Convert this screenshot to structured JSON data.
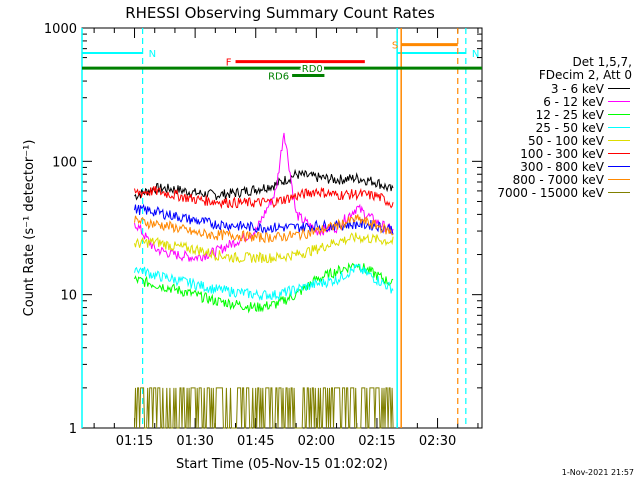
{
  "chart_data": {
    "type": "line",
    "title": "RHESSI Observing Summary Count Rates",
    "xlabel": "Start Time (05-Nov-15 01:02:02)",
    "ylabel": "Count Rate (s⁻¹ detector⁻¹)",
    "y_scale": "log",
    "ylim": [
      1,
      1000
    ],
    "xlim": [
      "01:02",
      "02:41"
    ],
    "x_ticks": [
      "01:15",
      "01:30",
      "01:45",
      "02:00",
      "02:15",
      "02:30"
    ],
    "y_ticks": [
      "1",
      "10",
      "100",
      "1000"
    ],
    "legend": {
      "placement": "right",
      "header": [
        "Det 1,5,7,",
        "FDecim 2, Att 0"
      ]
    },
    "series": [
      {
        "name": "3 - 6 keV",
        "color": "#000000",
        "x": [
          "01:15",
          "01:20",
          "01:25",
          "01:30",
          "01:35",
          "01:40",
          "01:45",
          "01:50",
          "01:52",
          "01:55",
          "02:00",
          "02:05",
          "02:10",
          "02:15",
          "02:19"
        ],
        "y": [
          55,
          63,
          62,
          58,
          56,
          58,
          62,
          67,
          72,
          80,
          76,
          73,
          75,
          70,
          60
        ]
      },
      {
        "name": "6 - 12 keV",
        "color": "#ff00ff",
        "x": [
          "01:15",
          "01:20",
          "01:25",
          "01:30",
          "01:35",
          "01:40",
          "01:45",
          "01:50",
          "01:52",
          "01:55",
          "02:00",
          "02:05",
          "02:10",
          "02:15",
          "02:19"
        ],
        "y": [
          35,
          22,
          20,
          19,
          21,
          25,
          30,
          60,
          170,
          40,
          30,
          32,
          45,
          35,
          30
        ]
      },
      {
        "name": "12 - 25 keV",
        "color": "#00ff00",
        "x": [
          "01:15",
          "01:20",
          "01:25",
          "01:30",
          "01:35",
          "01:40",
          "01:45",
          "01:50",
          "01:55",
          "02:00",
          "02:05",
          "02:10",
          "02:15",
          "02:19"
        ],
        "y": [
          13,
          12,
          11,
          10,
          9,
          8.5,
          8,
          8.5,
          10,
          13,
          15,
          17,
          14,
          12
        ]
      },
      {
        "name": "25 - 50 keV",
        "color": "#00ffff",
        "x": [
          "01:15",
          "01:20",
          "01:25",
          "01:30",
          "01:35",
          "01:40",
          "01:45",
          "01:50",
          "01:55",
          "02:00",
          "02:05",
          "02:10",
          "02:15",
          "02:19"
        ],
        "y": [
          16,
          14,
          13,
          12,
          11,
          10.5,
          10,
          10,
          11,
          12,
          13,
          16,
          13,
          11
        ]
      },
      {
        "name": "50 - 100 keV",
        "color": "#dddd00",
        "x": [
          "01:15",
          "01:20",
          "01:25",
          "01:30",
          "01:35",
          "01:40",
          "01:45",
          "01:50",
          "01:55",
          "02:00",
          "02:05",
          "02:10",
          "02:15",
          "02:19"
        ],
        "y": [
          24,
          25,
          23,
          22,
          20,
          19,
          19,
          19,
          20,
          22,
          25,
          27,
          26,
          25
        ]
      },
      {
        "name": "100 - 300 keV",
        "color": "#ff0000",
        "x": [
          "01:15",
          "01:20",
          "01:25",
          "01:30",
          "01:35",
          "01:40",
          "01:45",
          "01:50",
          "01:55",
          "02:00",
          "02:05",
          "02:10",
          "02:15",
          "02:19"
        ],
        "y": [
          58,
          60,
          56,
          52,
          50,
          49,
          49,
          50,
          55,
          60,
          56,
          57,
          55,
          48
        ]
      },
      {
        "name": "300 - 800 keV",
        "color": "#0000ff",
        "x": [
          "01:15",
          "01:20",
          "01:25",
          "01:30",
          "01:35",
          "01:40",
          "01:45",
          "01:50",
          "01:55",
          "02:00",
          "02:05",
          "02:10",
          "02:15",
          "02:19"
        ],
        "y": [
          44,
          42,
          39,
          36,
          34,
          33,
          32,
          32,
          32,
          33,
          33,
          34,
          33,
          31
        ]
      },
      {
        "name": "800 - 7000 keV",
        "color": "#ff8800",
        "x": [
          "01:15",
          "01:20",
          "01:25",
          "01:30",
          "01:35",
          "01:40",
          "01:45",
          "01:50",
          "01:55",
          "02:00",
          "02:05",
          "02:10",
          "02:15",
          "02:19"
        ],
        "y": [
          36,
          34,
          32,
          29,
          28,
          28,
          27,
          27,
          28,
          30,
          33,
          37,
          33,
          29
        ]
      },
      {
        "name": "7000 - 15000 keV",
        "color": "#808000",
        "x": [
          "01:15",
          "01:20",
          "01:25",
          "01:30",
          "01:35",
          "01:40",
          "01:45",
          "01:50",
          "01:55",
          "02:00",
          "02:05",
          "02:10",
          "02:15",
          "02:19"
        ],
        "y": [
          1.5,
          1.6,
          1.4,
          1.5,
          1.3,
          1.2,
          1.2,
          1.3,
          1.4,
          1.4,
          1.6,
          1.6,
          1.5,
          1.4
        ]
      }
    ],
    "annotations": [
      {
        "label": "N",
        "color": "#00ffff",
        "kind": "night",
        "x_start": "01:02",
        "x_end": "01:17",
        "y": 650
      },
      {
        "label": "N",
        "color": "#00ffff",
        "kind": "night",
        "x_start": "02:20",
        "x_end": "02:37",
        "y": 650
      },
      {
        "label": "S",
        "color": "#ff8800",
        "kind": "saa",
        "x_start": "02:21",
        "x_end": "02:35",
        "y": 750
      },
      {
        "label": "F",
        "color": "#ff0000",
        "kind": "flare",
        "x_start": "01:40",
        "x_end": "02:12",
        "y": 560
      },
      {
        "label": "RD0",
        "color": "#008000",
        "kind": "decimation",
        "x_start": "01:02",
        "x_end": "02:41",
        "y": 500
      },
      {
        "label": "RD6",
        "color": "#008000",
        "kind": "decimation",
        "x_start": "01:54",
        "x_end": "02:02",
        "y": 440
      }
    ]
  },
  "footer_timestamp": "1-Nov-2021 21:57"
}
